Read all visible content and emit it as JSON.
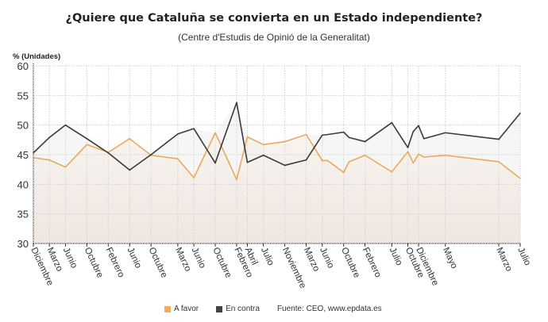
{
  "chart_data": {
    "type": "line",
    "title": "¿Quiere que Cataluña se convierta en un Estado independiente?",
    "subtitle": "(Centre d'Estudis de Opinió de la Generalitat)",
    "ylabel": "% (Unidades)",
    "xlabel": "",
    "ylim": [
      30,
      60
    ],
    "yticks": [
      30,
      35,
      40,
      45,
      50,
      55,
      60
    ],
    "grid": true,
    "legend_position": "bottom",
    "source": "Fuente: CEO, www.epdata.es",
    "xticks": [
      {
        "date": "2014-12",
        "label": "Diciembre"
      },
      {
        "date": "2015-03",
        "label": "Marzo"
      },
      {
        "date": "2015-06",
        "label": "Junio"
      },
      {
        "date": "2015-10",
        "label": "Octubre"
      },
      {
        "date": "2016-02",
        "label": "Febrero"
      },
      {
        "date": "2016-06",
        "label": "Junio"
      },
      {
        "date": "2016-10",
        "label": "Octubre"
      },
      {
        "date": "2017-03",
        "label": "Marzo"
      },
      {
        "date": "2017-06",
        "label": "Junio"
      },
      {
        "date": "2017-10",
        "label": "Octubre"
      },
      {
        "date": "2018-02",
        "label": "Febrero"
      },
      {
        "date": "2018-04",
        "label": "Abril"
      },
      {
        "date": "2018-07",
        "label": "Julio"
      },
      {
        "date": "2018-11",
        "label": "Noviembre"
      },
      {
        "date": "2019-03",
        "label": "Marzo"
      },
      {
        "date": "2019-06",
        "label": "Junio"
      },
      {
        "date": "2019-10",
        "label": "Octubre"
      },
      {
        "date": "2020-02",
        "label": "Febrero"
      },
      {
        "date": "2020-07",
        "label": "Julio"
      },
      {
        "date": "2020-10",
        "label": "Octubre"
      },
      {
        "date": "2020-12",
        "label": "Diciembre"
      },
      {
        "date": "2021-05",
        "label": "Mayo"
      },
      {
        "date": "2022-03",
        "label": "Marzo"
      },
      {
        "date": "2022-07",
        "label": "Julio"
      }
    ],
    "x": [
      "2014-12",
      "2015-03",
      "2015-06",
      "2015-10",
      "2016-02",
      "2016-06",
      "2016-10",
      "2017-03",
      "2017-06",
      "2017-10",
      "2018-02",
      "2018-04",
      "2018-07",
      "2018-11",
      "2019-03",
      "2019-06",
      "2019-07",
      "2019-10",
      "2019-11",
      "2020-02",
      "2020-07",
      "2020-10",
      "2020-11",
      "2020-12",
      "2021-01",
      "2021-05",
      "2022-03",
      "2022-07"
    ],
    "series": [
      {
        "name": "A favor",
        "color": "#e9a95c",
        "values": [
          44.5,
          44.1,
          42.9,
          46.7,
          45.4,
          47.7,
          44.9,
          44.3,
          41.1,
          48.7,
          40.8,
          48.0,
          46.7,
          47.2,
          48.4,
          44.0,
          44.0,
          42.0,
          43.8,
          44.9,
          42.1,
          45.5,
          43.6,
          45.1,
          44.6,
          44.9,
          43.8,
          41.0
        ]
      },
      {
        "name": "En contra",
        "color": "#3a3a3a",
        "values": [
          45.3,
          47.9,
          50.0,
          47.7,
          45.3,
          42.4,
          45.0,
          48.5,
          49.4,
          43.6,
          53.8,
          43.7,
          44.9,
          43.2,
          44.1,
          48.3,
          48.4,
          48.8,
          47.9,
          47.2,
          50.4,
          46.2,
          48.9,
          49.9,
          47.7,
          48.7,
          47.6,
          52.0
        ]
      }
    ]
  }
}
